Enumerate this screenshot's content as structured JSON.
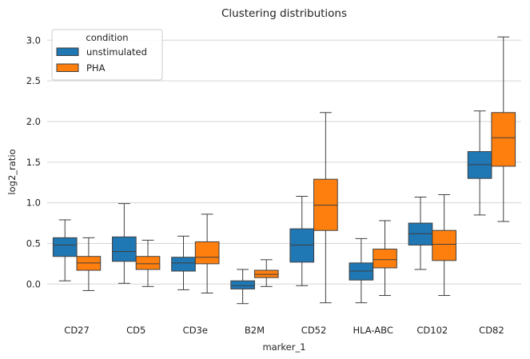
{
  "chart_data": {
    "type": "box",
    "title": "Clustering distributions",
    "xlabel": "marker_1",
    "ylabel": "log2_ratio",
    "categories": [
      "CD27",
      "CD5",
      "CD3e",
      "B2M",
      "CD52",
      "HLA-ABC",
      "CD102",
      "CD82"
    ],
    "ylim": [
      -0.42,
      3.18
    ],
    "yticks": [
      0.0,
      0.5,
      1.0,
      1.5,
      2.0,
      2.5,
      3.0
    ],
    "ytick_labels": [
      "0.0",
      "0.5",
      "1.0",
      "1.5",
      "2.0",
      "2.5",
      "3.0"
    ],
    "grid": true,
    "legend": {
      "title": "condition",
      "placement": "top-left"
    },
    "series": [
      {
        "name": "unstimulated",
        "color": "#1f77b4",
        "boxes": [
          {
            "whislo": 0.04,
            "q1": 0.34,
            "med": 0.48,
            "q3": 0.57,
            "whishi": 0.79
          },
          {
            "whislo": 0.01,
            "q1": 0.28,
            "med": 0.4,
            "q3": 0.58,
            "whishi": 0.99
          },
          {
            "whislo": -0.07,
            "q1": 0.16,
            "med": 0.26,
            "q3": 0.33,
            "whishi": 0.59
          },
          {
            "whislo": -0.24,
            "q1": -0.06,
            "med": -0.02,
            "q3": 0.04,
            "whishi": 0.18
          },
          {
            "whislo": -0.02,
            "q1": 0.27,
            "med": 0.48,
            "q3": 0.68,
            "whishi": 1.08
          },
          {
            "whislo": -0.23,
            "q1": 0.05,
            "med": 0.16,
            "q3": 0.26,
            "whishi": 0.56
          },
          {
            "whislo": 0.18,
            "q1": 0.48,
            "med": 0.62,
            "q3": 0.75,
            "whishi": 1.07
          },
          {
            "whislo": 0.85,
            "q1": 1.3,
            "med": 1.47,
            "q3": 1.63,
            "whishi": 2.13
          }
        ]
      },
      {
        "name": "PHA",
        "color": "#ff7f0e",
        "boxes": [
          {
            "whislo": -0.08,
            "q1": 0.17,
            "med": 0.26,
            "q3": 0.34,
            "whishi": 0.57
          },
          {
            "whislo": -0.03,
            "q1": 0.18,
            "med": 0.25,
            "q3": 0.34,
            "whishi": 0.54
          },
          {
            "whislo": -0.11,
            "q1": 0.25,
            "med": 0.33,
            "q3": 0.52,
            "whishi": 0.86
          },
          {
            "whislo": -0.03,
            "q1": 0.08,
            "med": 0.12,
            "q3": 0.17,
            "whishi": 0.3
          },
          {
            "whislo": -0.23,
            "q1": 0.66,
            "med": 0.97,
            "q3": 1.29,
            "whishi": 2.11
          },
          {
            "whislo": -0.14,
            "q1": 0.2,
            "med": 0.3,
            "q3": 0.43,
            "whishi": 0.78
          },
          {
            "whislo": -0.14,
            "q1": 0.29,
            "med": 0.49,
            "q3": 0.66,
            "whishi": 1.1
          },
          {
            "whislo": 0.77,
            "q1": 1.45,
            "med": 1.8,
            "q3": 2.11,
            "whishi": 3.04
          }
        ]
      }
    ]
  }
}
